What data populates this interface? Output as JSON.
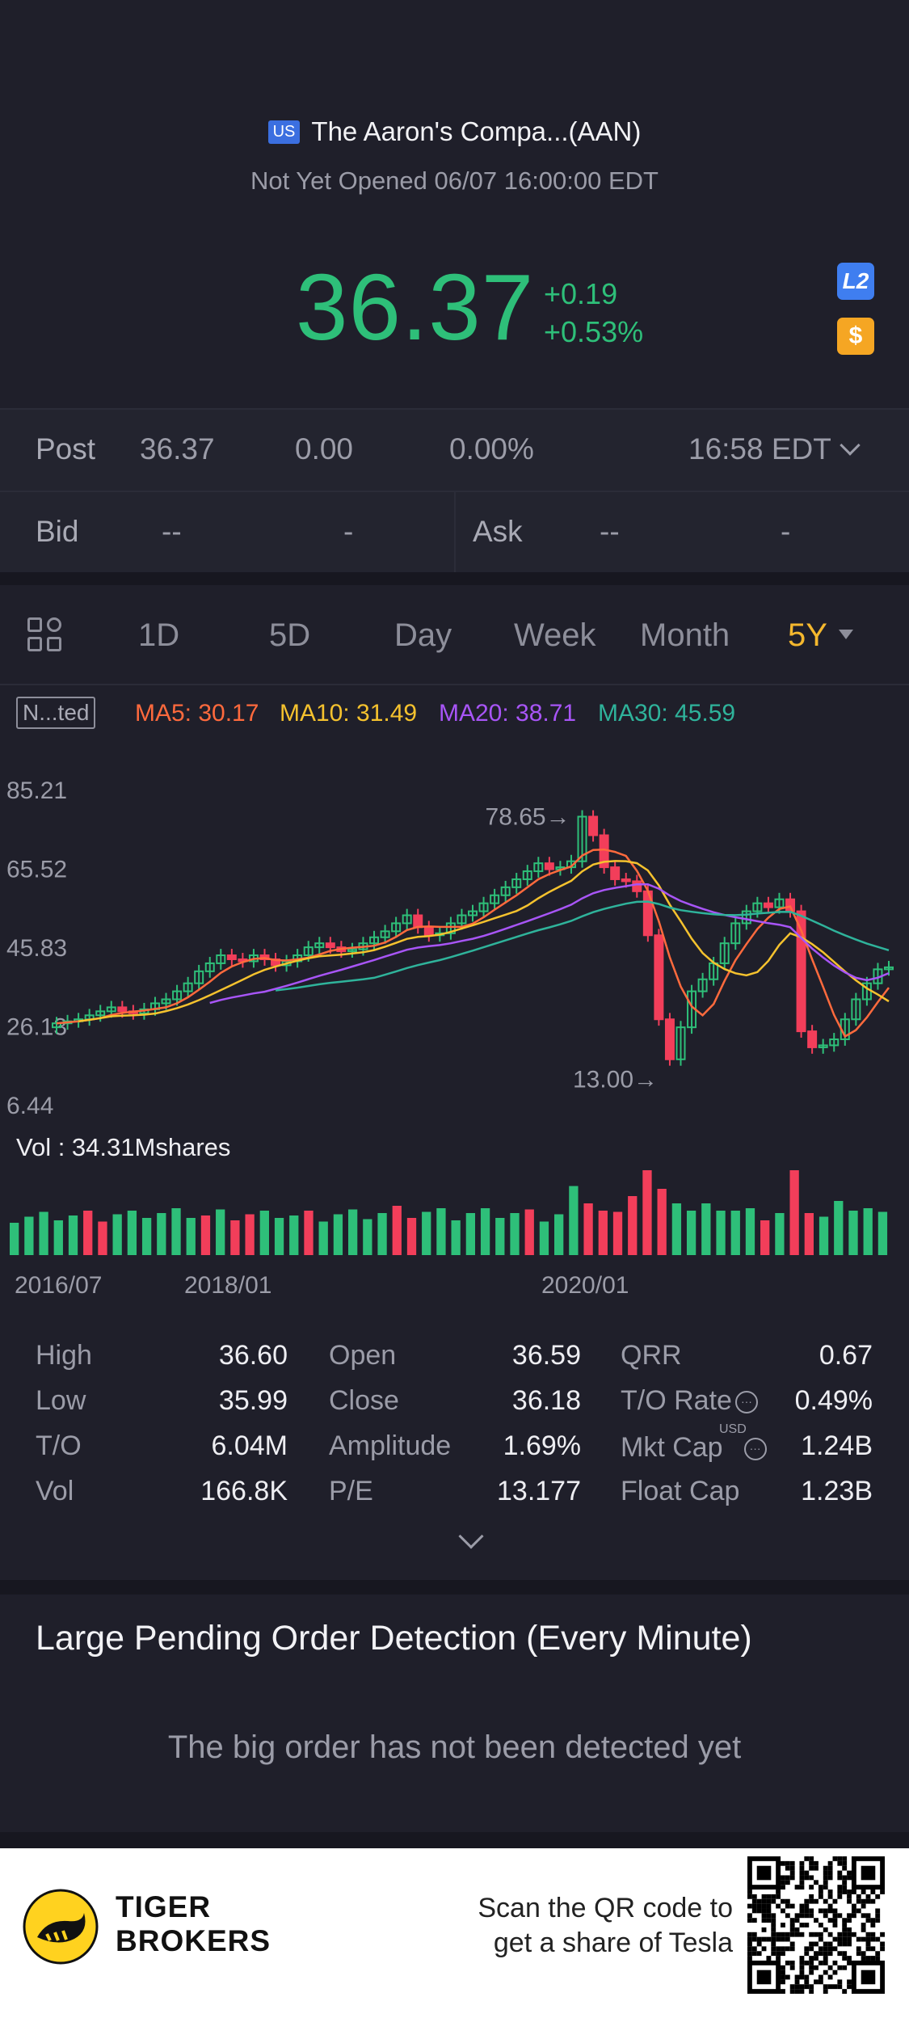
{
  "header": {
    "market_badge": "US",
    "stock_name": "The Aaron's Compa...(AAN)",
    "status": "Not Yet Opened 06/07 16:00:00 EDT",
    "price": "36.37",
    "change_abs": "+0.19",
    "change_pct": "+0.53%",
    "l2_label": "L2",
    "dollar_label": "$",
    "accent_color": "#2ebf79"
  },
  "post": {
    "label": "Post",
    "price": "36.37",
    "change": "0.00",
    "pct": "0.00%",
    "time": "16:58 EDT"
  },
  "bid": {
    "label": "Bid",
    "price": "--",
    "size": "-"
  },
  "ask": {
    "label": "Ask",
    "price": "--",
    "size": "-"
  },
  "tabs": [
    {
      "label": "1D"
    },
    {
      "label": "5D"
    },
    {
      "label": "Day"
    },
    {
      "label": "Week"
    },
    {
      "label": "Month"
    },
    {
      "label": "5Y"
    }
  ],
  "indicators": {
    "adjust_label": "N...ted",
    "ma5": "MA5: 30.17",
    "ma10": "MA10: 31.49",
    "ma20": "MA20: 38.71",
    "ma30": "MA30: 45.59"
  },
  "chart_data": {
    "type": "candlestick",
    "y_ticks": [
      "85.21",
      "65.52",
      "45.83",
      "26.13",
      "6.44"
    ],
    "ylim": [
      6.44,
      85.21
    ],
    "annotations": [
      {
        "text": "78.65→",
        "value": 78.65
      },
      {
        "text": "13.00→",
        "value": 13.0
      }
    ],
    "x_ticks": [
      "2016/07",
      "2018/01",
      "2020/01"
    ],
    "close": [
      27,
      27.5,
      28,
      29,
      30,
      31,
      30,
      29.5,
      30.5,
      32,
      33,
      35,
      37,
      40,
      42,
      44,
      43,
      42.5,
      44,
      43,
      41.5,
      42.5,
      44,
      46,
      47,
      46,
      45,
      45.5,
      47,
      48.5,
      50,
      52,
      54,
      51,
      49,
      49.5,
      52,
      54,
      55,
      57,
      59,
      61,
      63,
      65,
      67,
      65.5,
      66,
      67.5,
      78.65,
      74,
      66,
      63,
      62.5,
      60,
      49,
      28,
      18,
      26,
      35,
      38,
      42,
      47,
      52,
      55,
      57,
      56,
      58,
      55,
      25,
      21,
      21.5,
      23,
      28,
      33,
      37,
      40.5,
      41
    ],
    "volume_label": "Vol  : 34.31Mshares"
  },
  "stats": {
    "high_k": "High",
    "high_v": "36.60",
    "low_k": "Low",
    "low_v": "35.99",
    "to_k": "T/O",
    "to_v": "6.04M",
    "vol_k": "Vol",
    "vol_v": "166.8K",
    "open_k": "Open",
    "open_v": "36.59",
    "close_k": "Close",
    "close_v": "36.18",
    "amp_k": "Amplitude",
    "amp_v": "1.69%",
    "pe_k": "P/E",
    "pe_v": "13.177",
    "qrr_k": "QRR",
    "qrr_v": "0.67",
    "tor_k": "T/O Rate",
    "tor_v": "0.49%",
    "mcap_k": "Mkt Cap",
    "mcap_sup": "USD",
    "mcap_v": "1.24B",
    "fcap_k": "Float Cap",
    "fcap_v": "1.23B"
  },
  "large_order": {
    "title": "Large Pending Order Detection (Every Minute)",
    "empty": "The big order has not been detected yet"
  },
  "footer": {
    "brand_line1": "TIGER",
    "brand_line2": "BROKERS",
    "qr_line1": "Scan the QR code to",
    "qr_line2": "get a share of Tesla"
  }
}
